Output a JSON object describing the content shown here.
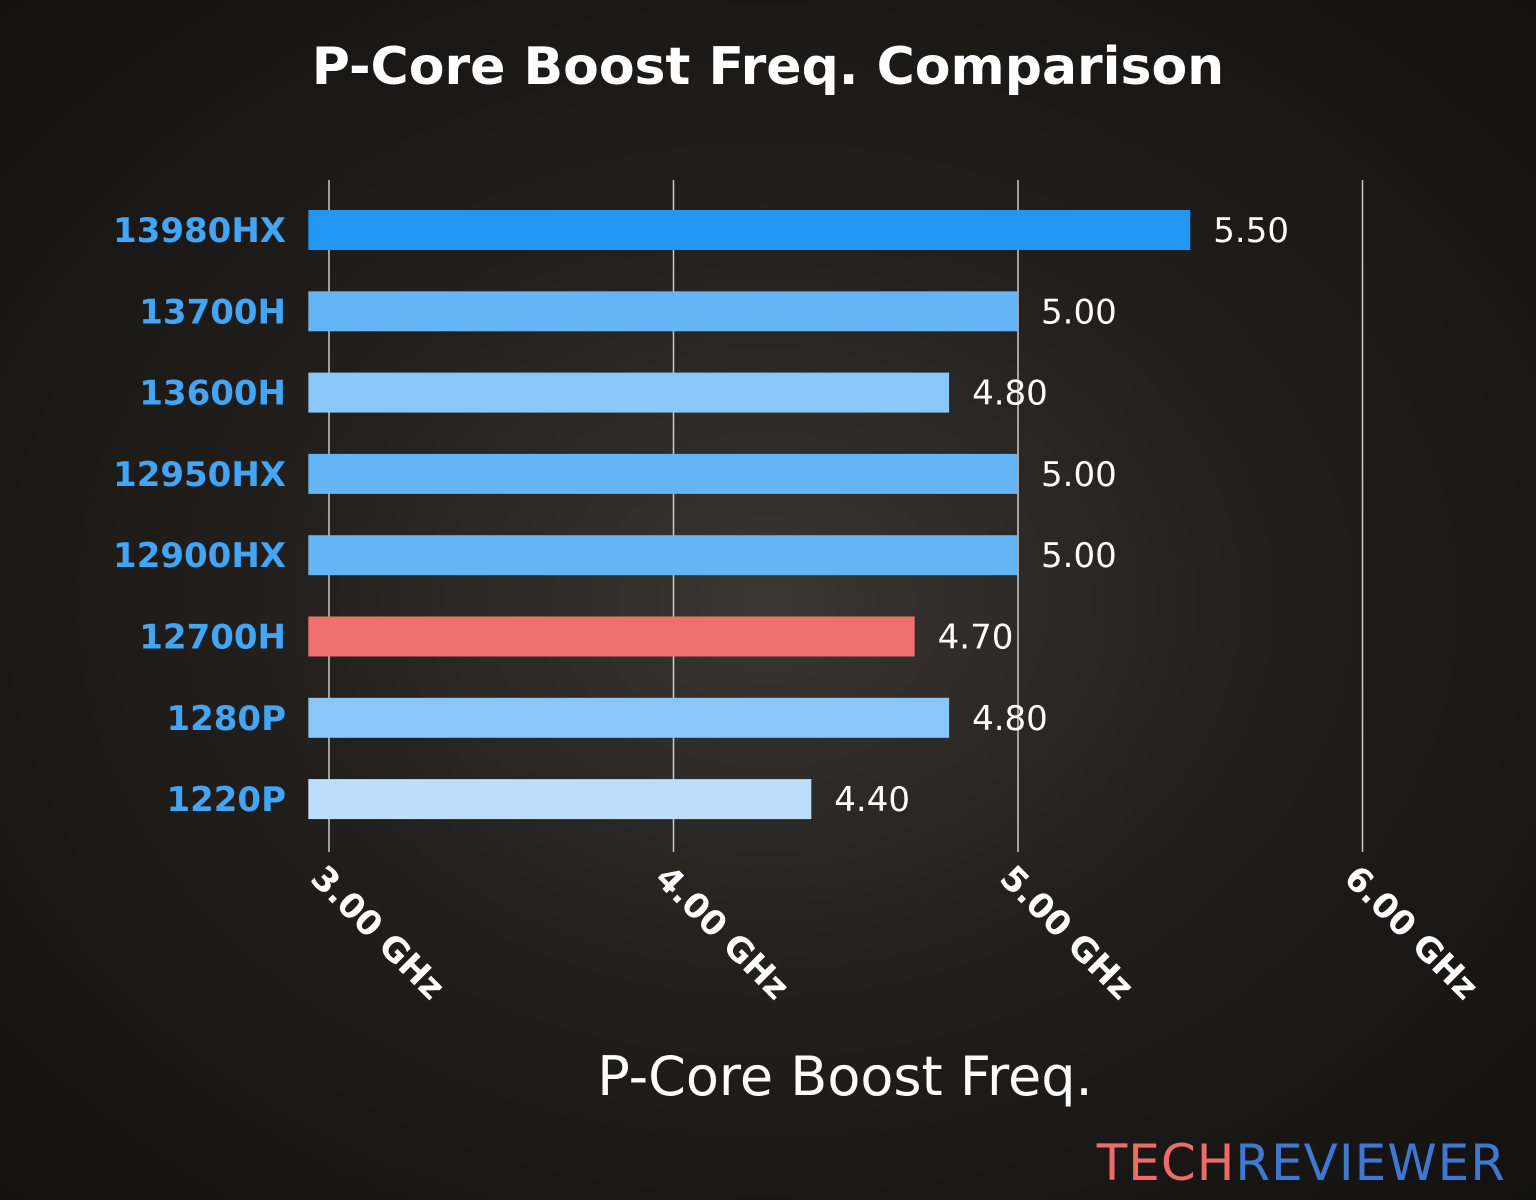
{
  "chart_data": {
    "type": "bar",
    "orientation": "horizontal",
    "title": "P-Core Boost Freq. Comparison",
    "xlabel": "P-Core Boost Freq.",
    "ylabel": "",
    "categories": [
      "13980HX",
      "13700H",
      "13600H",
      "12950HX",
      "12900HX",
      "12700H",
      "1280P",
      "1220P"
    ],
    "values": [
      5.5,
      5.0,
      4.8,
      5.0,
      5.0,
      4.7,
      4.8,
      4.4
    ],
    "data_labels": [
      "5.50",
      "5.00",
      "4.80",
      "5.00",
      "5.00",
      "4.70",
      "4.80",
      "4.40"
    ],
    "bar_colors": [
      "#2196f3",
      "#64b5f6",
      "#8ac6f8",
      "#64b5f6",
      "#64b5f6",
      "#f07070",
      "#8ac6f8",
      "#bbdefb"
    ],
    "xlim": [
      2.94,
      6.0
    ],
    "xticks": [
      3,
      4,
      5,
      6
    ],
    "xtick_labels": [
      "3.00 GHz",
      "4.00 GHz",
      "5.00 GHz",
      "6.00 GHz"
    ],
    "grid": "vertical",
    "category_label_color": "#42a5f5"
  },
  "logo": {
    "part1": "TECH",
    "part2": "REVIEWER"
  }
}
